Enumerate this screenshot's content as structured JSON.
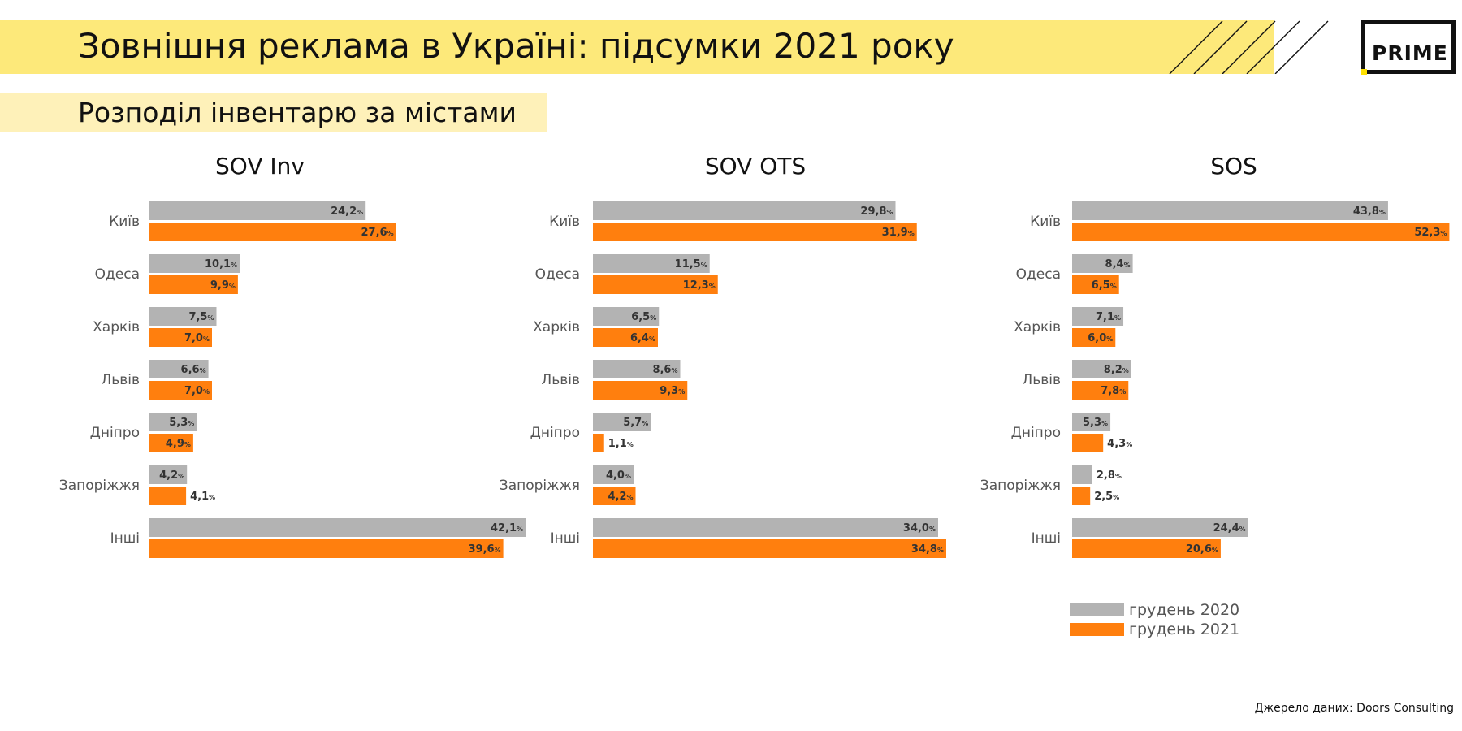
{
  "header": {
    "title": "Зовнішня реклама в Україні: підсумки 2021 року",
    "subtitle": "Розподіл інвентарю за містами",
    "logo_text": "PRIME",
    "source": "Джерело даних: Doors Consulting"
  },
  "colors": {
    "title_band": "#fde97a",
    "subtitle_band": "#fef1b9",
    "series_2020": "#b3b3b3",
    "series_2021": "#ff7f0e",
    "logo_accent": "#ffe100"
  },
  "legend": [
    {
      "label": "грудень 2020",
      "color": "#b3b3b3"
    },
    {
      "label": "грудень 2021",
      "color": "#ff7f0e"
    }
  ],
  "chart_data": [
    {
      "type": "bar",
      "orientation": "horizontal",
      "title": "SOV Inv",
      "categories": [
        "Київ",
        "Одеса",
        "Харків",
        "Львів",
        "Дніпро",
        "Запоріжжя",
        "Інші"
      ],
      "value_suffix": "%",
      "series": [
        {
          "name": "грудень 2020",
          "values": [
            "24,2",
            "10,1",
            "7,5",
            "6,6",
            "5,3",
            "4,2",
            "42,1"
          ]
        },
        {
          "name": "грудень 2021",
          "values": [
            "27,6",
            "9,9",
            "7,0",
            "7,0",
            "4,9",
            "4,1",
            "39,6"
          ]
        }
      ]
    },
    {
      "type": "bar",
      "orientation": "horizontal",
      "title": "SOV OTS",
      "categories": [
        "Київ",
        "Одеса",
        "Харків",
        "Львів",
        "Дніпро",
        "Запоріжжя",
        "Інші"
      ],
      "value_suffix": "%",
      "series": [
        {
          "name": "грудень 2020",
          "values": [
            "29,8",
            "11,5",
            "6,5",
            "8,6",
            "5,7",
            "4,0",
            "34,0"
          ]
        },
        {
          "name": "грудень 2021",
          "values": [
            "31,9",
            "12,3",
            "6,4",
            "9,3",
            "1,1",
            "4,2",
            "34,8"
          ]
        }
      ]
    },
    {
      "type": "bar",
      "orientation": "horizontal",
      "title": "SOS",
      "categories": [
        "Київ",
        "Одеса",
        "Харків",
        "Львів",
        "Дніпро",
        "Запоріжжя",
        "Інші"
      ],
      "value_suffix": "%",
      "series": [
        {
          "name": "грудень 2020",
          "values": [
            "43,8",
            "8,4",
            "7,1",
            "8,2",
            "5,3",
            "2,8",
            "24,4"
          ]
        },
        {
          "name": "грудень 2021",
          "values": [
            "52,3",
            "6,5",
            "6,0",
            "7,8",
            "4,3",
            "2,5",
            "20,6"
          ]
        }
      ]
    }
  ]
}
